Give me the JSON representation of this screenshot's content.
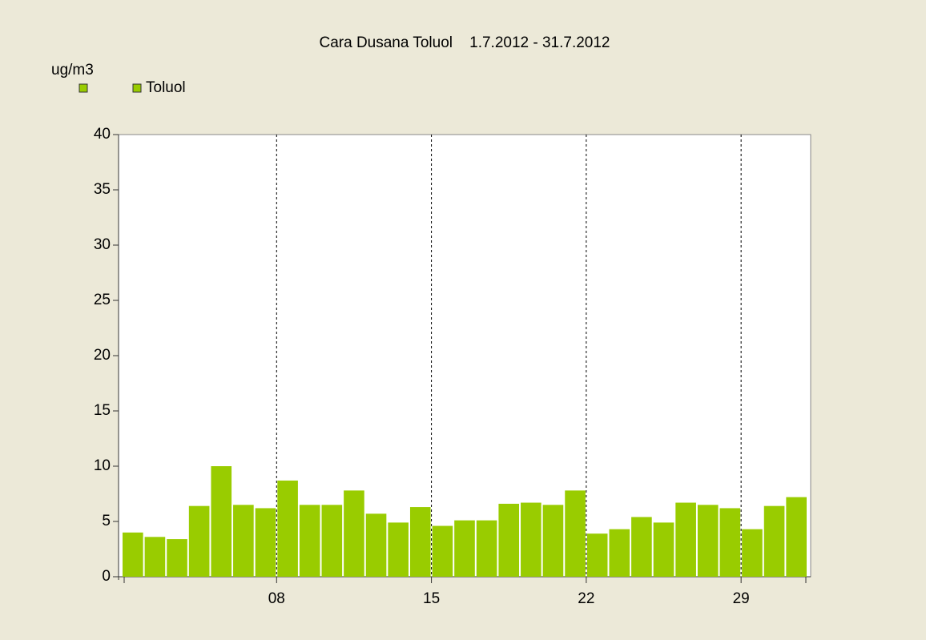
{
  "chart_data": {
    "type": "bar",
    "title": "Cara Dusana Toluol    1.7.2012 - 31.7.2012",
    "y_label": "ug/m3",
    "categories": [
      null,
      null,
      null,
      null,
      null,
      null,
      null,
      "08",
      null,
      null,
      null,
      null,
      null,
      null,
      "15",
      null,
      null,
      null,
      null,
      null,
      null,
      "22",
      null,
      null,
      null,
      null,
      null,
      null,
      "29",
      null,
      null
    ],
    "series": [
      {
        "name": "Toluol",
        "color": "#99cc00",
        "values": [
          4.0,
          3.6,
          3.4,
          6.4,
          10.0,
          6.5,
          6.2,
          8.7,
          6.5,
          6.5,
          7.8,
          5.7,
          4.9,
          6.3,
          4.6,
          5.1,
          5.1,
          6.6,
          6.7,
          6.5,
          7.8,
          3.9,
          4.3,
          5.4,
          4.9,
          6.7,
          6.5,
          6.2,
          4.3,
          6.4,
          7.2
        ]
      }
    ],
    "ylim": [
      0,
      40
    ],
    "yticks": [
      0,
      5,
      10,
      15,
      20,
      25,
      30,
      35,
      40
    ],
    "grid": "x-dashed",
    "legend": "top-left"
  }
}
